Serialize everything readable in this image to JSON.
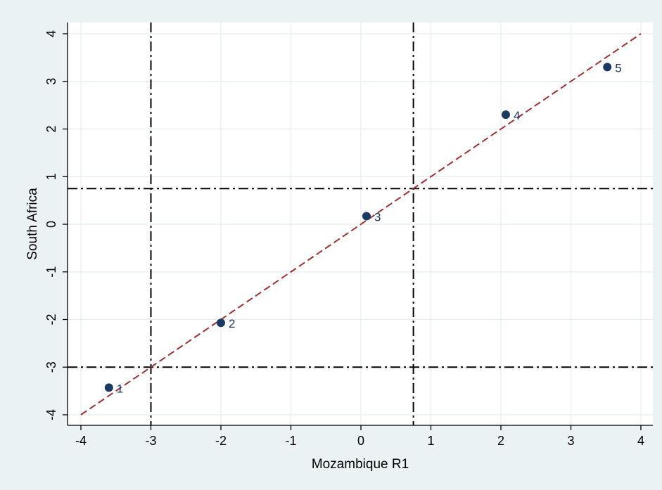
{
  "chart_data": {
    "type": "scatter",
    "title": "",
    "xlabel": "Mozambique R1",
    "ylabel": "South Africa",
    "xlim": [
      -4,
      4
    ],
    "ylim": [
      -4,
      4
    ],
    "xticks": [
      -4,
      -3,
      -2,
      -1,
      0,
      1,
      2,
      3,
      4
    ],
    "yticks": [
      -4,
      -3,
      -2,
      -1,
      0,
      1,
      2,
      3,
      4
    ],
    "grid": true,
    "series": [
      {
        "points": [
          {
            "x": -3.6,
            "y": -3.43,
            "label": "1"
          },
          {
            "x": -2.0,
            "y": -2.07,
            "label": "2"
          },
          {
            "x": 0.08,
            "y": 0.17,
            "label": "3"
          },
          {
            "x": 2.07,
            "y": 2.3,
            "label": "4"
          },
          {
            "x": 3.52,
            "y": 3.3,
            "label": "5"
          }
        ]
      }
    ],
    "reference_lines": {
      "diagonal": {
        "from": [
          -4,
          -4
        ],
        "to": [
          4,
          4
        ],
        "color": "#a03030"
      },
      "vertical": [
        -3,
        0.75
      ],
      "horizontal": [
        -3,
        0.75
      ]
    },
    "colors": {
      "background": "#eaf2f3",
      "plot_area": "#ffffff",
      "marker": "#1a3a64",
      "grid": "#e6ecee",
      "diagonal": "#a03030",
      "cutoff": "#000000"
    }
  }
}
